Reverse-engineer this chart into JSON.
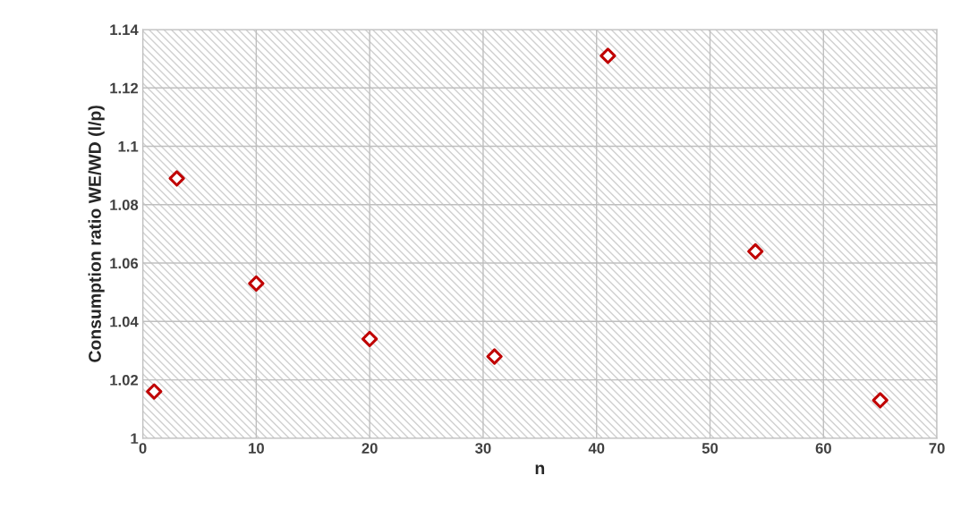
{
  "chart_data": {
    "type": "scatter",
    "xlabel": "n",
    "ylabel": "Consumption ratio WE/WD (l/p)",
    "x": [
      1,
      3,
      10,
      20,
      31,
      41,
      54,
      65
    ],
    "series": [
      {
        "color": "#c00000",
        "values": [
          1.016,
          1.089,
          1.053,
          1.034,
          1.028,
          1.131,
          1.064,
          1.013
        ]
      }
    ],
    "xlim": [
      0,
      70
    ],
    "xticks": [
      0,
      10,
      20,
      30,
      40,
      50,
      60,
      70
    ],
    "ylim": [
      1,
      1.14
    ],
    "yticks": [
      {
        "value": 1,
        "label": "1"
      },
      {
        "value": 1.02,
        "label": "1.02"
      },
      {
        "value": 1.04,
        "label": "1.04"
      },
      {
        "value": 1.06,
        "label": "1.06"
      },
      {
        "value": 1.08,
        "label": "1.08"
      },
      {
        "value": 1.1,
        "label": "1.1"
      },
      {
        "value": 1.12,
        "label": "1.12"
      },
      {
        "value": 1.14,
        "label": "1.14"
      }
    ],
    "grid": true,
    "marker": "diamond",
    "legend": false
  }
}
